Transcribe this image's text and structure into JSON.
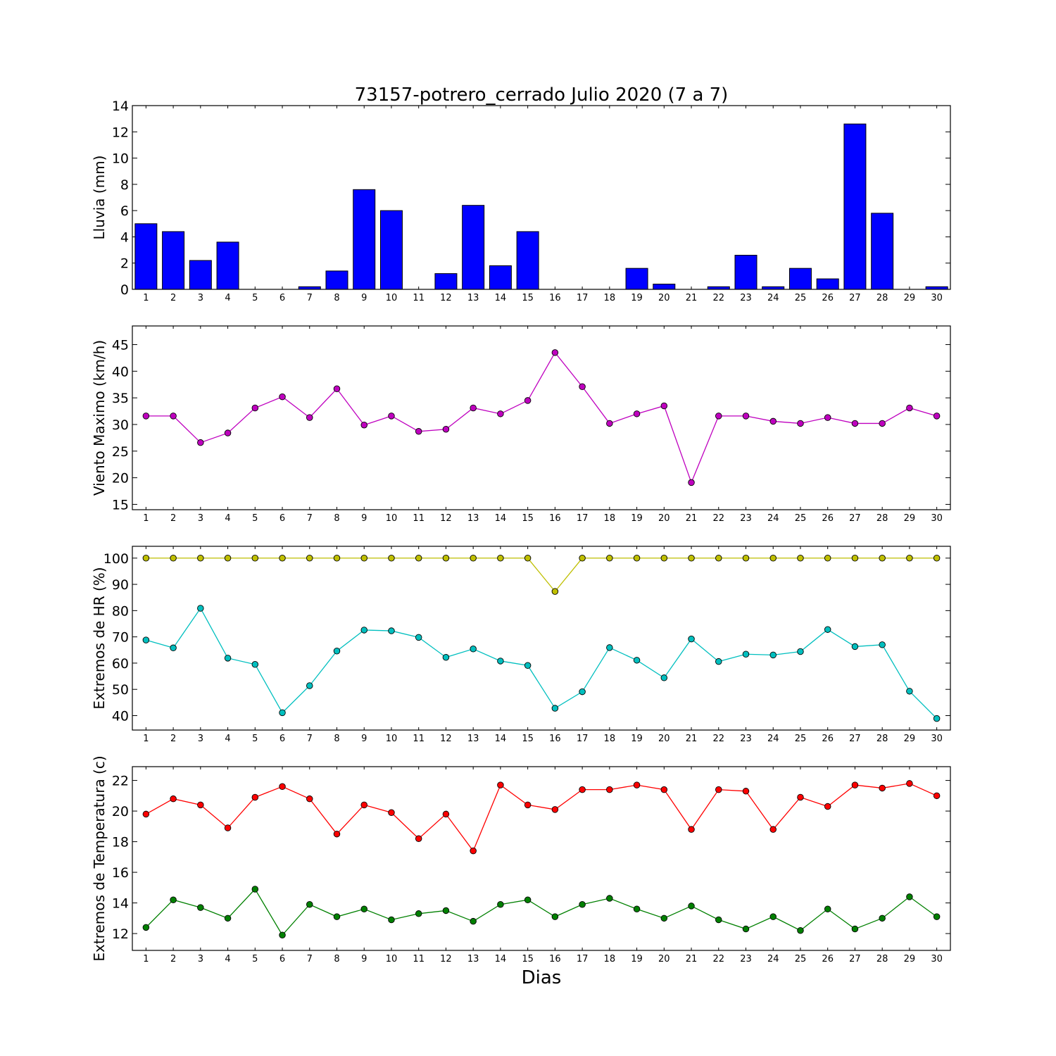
{
  "figure_title": "73157-potrero_cerrado Julio 2020  (7 a 7)",
  "x_axis_label": "Dias",
  "chart_data": [
    {
      "type": "bar",
      "ylabel": "Lluvia (mm)",
      "ylim": [
        0,
        14
      ],
      "yticks": [
        0,
        2,
        4,
        6,
        8,
        10,
        12,
        14
      ],
      "categories": [
        1,
        2,
        3,
        4,
        5,
        6,
        7,
        8,
        9,
        10,
        11,
        12,
        13,
        14,
        15,
        16,
        17,
        18,
        19,
        20,
        21,
        22,
        23,
        24,
        25,
        26,
        27,
        28,
        29,
        30
      ],
      "colors": {
        "bar": "#0000ff"
      },
      "values": [
        5.0,
        4.4,
        2.2,
        3.6,
        0,
        0,
        0.2,
        1.4,
        7.6,
        6.0,
        0,
        1.2,
        6.4,
        1.8,
        4.4,
        0,
        0,
        0,
        1.6,
        0.4,
        0,
        0.2,
        2.6,
        0.2,
        1.6,
        0.8,
        12.6,
        5.8,
        0,
        0.2
      ]
    },
    {
      "type": "line",
      "ylabel": "Viento Maximo (km/h)",
      "ylim": [
        14,
        48.5
      ],
      "yticks": [
        15,
        20,
        25,
        30,
        35,
        40,
        45
      ],
      "x": [
        1,
        2,
        3,
        4,
        5,
        6,
        7,
        8,
        9,
        10,
        11,
        12,
        13,
        14,
        15,
        16,
        17,
        18,
        19,
        20,
        21,
        22,
        23,
        24,
        25,
        26,
        27,
        28,
        29,
        30
      ],
      "colors": {
        "line": "#bf00bf"
      },
      "values": [
        31.6,
        31.6,
        26.6,
        28.4,
        33.1,
        35.2,
        31.3,
        36.7,
        29.9,
        31.6,
        28.7,
        29.1,
        33.1,
        32.0,
        34.5,
        43.5,
        37.1,
        30.2,
        32.0,
        33.5,
        19.1,
        31.6,
        31.6,
        30.6,
        30.2,
        31.3,
        30.2,
        30.2,
        33.1,
        31.6
      ]
    },
    {
      "type": "line",
      "ylabel": "Extremos de HR (%)",
      "ylim": [
        34.5,
        104.5
      ],
      "yticks": [
        40,
        50,
        60,
        70,
        80,
        90,
        100
      ],
      "x": [
        1,
        2,
        3,
        4,
        5,
        6,
        7,
        8,
        9,
        10,
        11,
        12,
        13,
        14,
        15,
        16,
        17,
        18,
        19,
        20,
        21,
        22,
        23,
        24,
        25,
        26,
        27,
        28,
        29,
        30
      ],
      "series": [
        {
          "color": "#bfbf00",
          "values": [
            100,
            100,
            100,
            100,
            100,
            100,
            100,
            100,
            100,
            100,
            100,
            100,
            100,
            100,
            100,
            87.3,
            100,
            100,
            100,
            100,
            100,
            100,
            100,
            100,
            100,
            100,
            100,
            100,
            100,
            100
          ]
        },
        {
          "color": "#00bfbf",
          "values": [
            68.8,
            65.8,
            80.9,
            61.9,
            59.5,
            41.1,
            51.4,
            64.6,
            72.6,
            72.3,
            69.8,
            62.2,
            65.4,
            60.8,
            59.1,
            42.8,
            49.1,
            65.9,
            61.1,
            54.4,
            69.2,
            60.6,
            63.4,
            63.1,
            64.4,
            72.8,
            66.3,
            67.0,
            49.3,
            38.9
          ]
        }
      ]
    },
    {
      "type": "line",
      "ylabel": "Extremos de Temperatura (c)",
      "ylim": [
        10.9,
        22.9
      ],
      "yticks": [
        12,
        14,
        16,
        18,
        20,
        22
      ],
      "x": [
        1,
        2,
        3,
        4,
        5,
        6,
        7,
        8,
        9,
        10,
        11,
        12,
        13,
        14,
        15,
        16,
        17,
        18,
        19,
        20,
        21,
        22,
        23,
        24,
        25,
        26,
        27,
        28,
        29,
        30
      ],
      "series": [
        {
          "color": "#ff0000",
          "values": [
            19.8,
            20.8,
            20.4,
            18.9,
            20.9,
            21.6,
            20.8,
            18.5,
            20.4,
            19.9,
            18.2,
            19.8,
            17.4,
            21.7,
            20.4,
            20.1,
            21.4,
            21.4,
            21.7,
            21.4,
            18.8,
            21.4,
            21.3,
            18.8,
            20.9,
            20.3,
            21.7,
            21.5,
            21.8,
            21.0
          ]
        },
        {
          "color": "#008000",
          "values": [
            12.4,
            14.2,
            13.7,
            13.0,
            14.9,
            11.9,
            13.9,
            13.1,
            13.6,
            12.9,
            13.3,
            13.5,
            12.8,
            13.9,
            14.2,
            13.1,
            13.9,
            14.3,
            13.6,
            13.0,
            13.8,
            12.9,
            12.3,
            13.1,
            12.2,
            13.6,
            12.3,
            13.0,
            14.4,
            13.1
          ]
        }
      ]
    }
  ]
}
